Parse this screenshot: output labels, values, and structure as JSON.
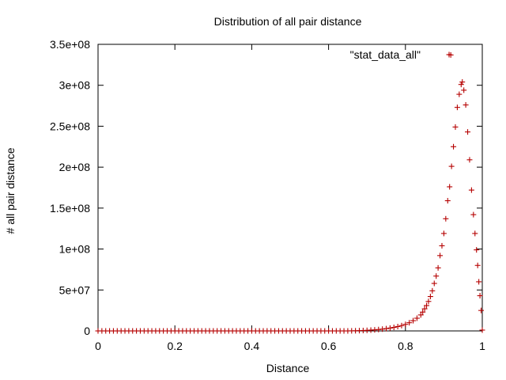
{
  "chart_data": {
    "type": "scatter",
    "title": "Distribution of all pair distance",
    "xlabel": "Distance",
    "ylabel": "# all pair distance",
    "xlim": [
      0,
      1
    ],
    "ylim": [
      0,
      350000000
    ],
    "grid": false,
    "legend_placement": "top-right",
    "marker": "plus",
    "series_color": "#b50000",
    "x_ticks": [
      0,
      0.2,
      0.4,
      0.6,
      0.8,
      1
    ],
    "x_tick_labels": [
      "0",
      "0.2",
      "0.4",
      "0.6",
      "0.8",
      "1"
    ],
    "y_ticks": [
      0,
      50000000,
      100000000,
      150000000,
      200000000,
      250000000,
      300000000,
      350000000
    ],
    "y_tick_labels": [
      "0",
      "5e+07",
      "1e+08",
      "1.5e+08",
      "2e+08",
      "2.5e+08",
      "3e+08",
      "3.5e+08"
    ],
    "series": [
      {
        "name": "\"stat_data_all\"",
        "points": [
          [
            0.0,
            0
          ],
          [
            0.01,
            0
          ],
          [
            0.02,
            0
          ],
          [
            0.03,
            0
          ],
          [
            0.04,
            0
          ],
          [
            0.05,
            0
          ],
          [
            0.06,
            0
          ],
          [
            0.07,
            0
          ],
          [
            0.08,
            0
          ],
          [
            0.09,
            0
          ],
          [
            0.1,
            0
          ],
          [
            0.11,
            0
          ],
          [
            0.12,
            0
          ],
          [
            0.13,
            0
          ],
          [
            0.14,
            0
          ],
          [
            0.15,
            0
          ],
          [
            0.16,
            0
          ],
          [
            0.17,
            0
          ],
          [
            0.18,
            0
          ],
          [
            0.19,
            0
          ],
          [
            0.2,
            0
          ],
          [
            0.21,
            0
          ],
          [
            0.22,
            0
          ],
          [
            0.23,
            0
          ],
          [
            0.24,
            0
          ],
          [
            0.25,
            0
          ],
          [
            0.26,
            0
          ],
          [
            0.27,
            0
          ],
          [
            0.28,
            0
          ],
          [
            0.29,
            0
          ],
          [
            0.3,
            0
          ],
          [
            0.31,
            0
          ],
          [
            0.32,
            0
          ],
          [
            0.33,
            0
          ],
          [
            0.34,
            0
          ],
          [
            0.35,
            0
          ],
          [
            0.36,
            0
          ],
          [
            0.37,
            0
          ],
          [
            0.38,
            0
          ],
          [
            0.39,
            0
          ],
          [
            0.4,
            0
          ],
          [
            0.41,
            0
          ],
          [
            0.42,
            0
          ],
          [
            0.43,
            0
          ],
          [
            0.44,
            0
          ],
          [
            0.45,
            0
          ],
          [
            0.46,
            0
          ],
          [
            0.47,
            0
          ],
          [
            0.48,
            0
          ],
          [
            0.49,
            0
          ],
          [
            0.5,
            0
          ],
          [
            0.51,
            0
          ],
          [
            0.52,
            0
          ],
          [
            0.53,
            0
          ],
          [
            0.54,
            0
          ],
          [
            0.55,
            0
          ],
          [
            0.56,
            0
          ],
          [
            0.57,
            0
          ],
          [
            0.58,
            0
          ],
          [
            0.59,
            0
          ],
          [
            0.6,
            0
          ],
          [
            0.61,
            0
          ],
          [
            0.62,
            0
          ],
          [
            0.63,
            0
          ],
          [
            0.64,
            0
          ],
          [
            0.65,
            0
          ],
          [
            0.66,
            100000
          ],
          [
            0.67,
            200000
          ],
          [
            0.68,
            350000
          ],
          [
            0.69,
            500000
          ],
          [
            0.7,
            700000
          ],
          [
            0.71,
            1000000
          ],
          [
            0.72,
            1300000
          ],
          [
            0.73,
            1700000
          ],
          [
            0.74,
            2200000
          ],
          [
            0.75,
            2800000
          ],
          [
            0.76,
            3500000
          ],
          [
            0.77,
            4300000
          ],
          [
            0.78,
            5300000
          ],
          [
            0.79,
            6500000
          ],
          [
            0.8,
            8000000
          ],
          [
            0.81,
            10000000
          ],
          [
            0.82,
            12500000
          ],
          [
            0.83,
            15500000
          ],
          [
            0.84,
            19500000
          ],
          [
            0.845,
            23000000
          ],
          [
            0.85,
            27000000
          ],
          [
            0.855,
            31000000
          ],
          [
            0.86,
            36000000
          ],
          [
            0.865,
            42000000
          ],
          [
            0.87,
            49000000
          ],
          [
            0.875,
            58000000
          ],
          [
            0.88,
            67000000
          ],
          [
            0.885,
            77000000
          ],
          [
            0.89,
            92000000
          ],
          [
            0.895,
            104000000
          ],
          [
            0.9,
            119000000
          ],
          [
            0.905,
            137000000
          ],
          [
            0.91,
            159000000
          ],
          [
            0.915,
            176000000
          ],
          [
            0.92,
            201000000
          ],
          [
            0.925,
            225000000
          ],
          [
            0.93,
            249000000
          ],
          [
            0.935,
            273000000
          ],
          [
            0.94,
            289000000
          ],
          [
            0.945,
            301000000
          ],
          [
            0.948,
            304000000
          ],
          [
            0.952,
            294000000
          ],
          [
            0.957,
            276000000
          ],
          [
            0.962,
            243000000
          ],
          [
            0.967,
            209000000
          ],
          [
            0.972,
            172000000
          ],
          [
            0.977,
            142000000
          ],
          [
            0.981,
            119000000
          ],
          [
            0.985,
            99000000
          ],
          [
            0.988,
            80000000
          ],
          [
            0.991,
            60000000
          ],
          [
            0.994,
            43000000
          ],
          [
            0.997,
            25000000
          ],
          [
            1.0,
            1000000
          ],
          [
            0.918,
            337000000
          ]
        ]
      }
    ]
  }
}
